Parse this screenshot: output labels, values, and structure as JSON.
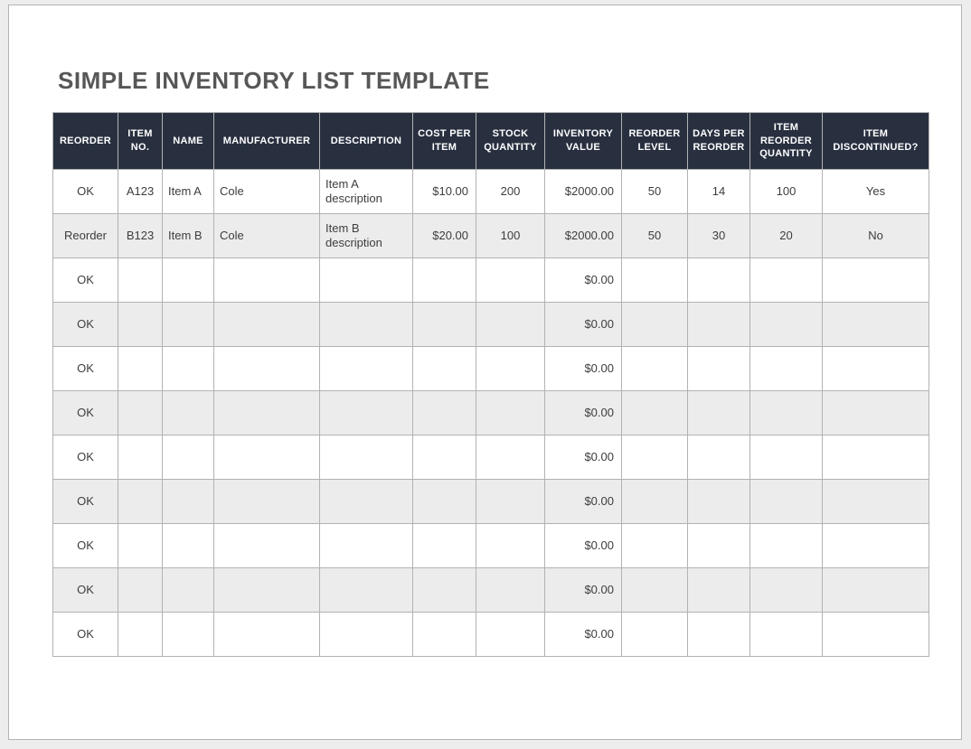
{
  "page": {
    "title": "SIMPLE INVENTORY LIST TEMPLATE"
  },
  "colors": {
    "canvas_bg": "#ededed",
    "page_bg": "#ffffff",
    "page_border": "#b3b3b3",
    "title_text": "#575757",
    "header_bg": "#283040",
    "header_text": "#ffffff",
    "body_text": "#3d3d3d",
    "row_alt_bg": "#ececec",
    "cell_border": "#b2b2b2"
  },
  "table": {
    "columns": [
      {
        "id": "reorder",
        "label": "REORDER"
      },
      {
        "id": "item_no",
        "label": "ITEM NO."
      },
      {
        "id": "name",
        "label": "NAME"
      },
      {
        "id": "manufacturer",
        "label": "MANUFACTURER"
      },
      {
        "id": "description",
        "label": "DESCRIPTION"
      },
      {
        "id": "cost_per_item",
        "label": "COST PER ITEM"
      },
      {
        "id": "stock_quantity",
        "label": "STOCK QUANTITY"
      },
      {
        "id": "inventory_value",
        "label": "INVENTORY VALUE"
      },
      {
        "id": "reorder_level",
        "label": "REORDER LEVEL"
      },
      {
        "id": "days_per_reorder",
        "label": "DAYS PER REORDER"
      },
      {
        "id": "item_reorder_quantity",
        "label": "ITEM REORDER QUANTITY"
      },
      {
        "id": "item_discontinued",
        "label": "ITEM DISCONTINUED?"
      }
    ],
    "rows": [
      {
        "cells": [
          "OK",
          "A123",
          "Item A",
          "Cole",
          "Item A description",
          "$10.00",
          "200",
          "$2000.00",
          "50",
          "14",
          "100",
          "Yes"
        ]
      },
      {
        "cells": [
          "Reorder",
          "B123",
          "Item B",
          "Cole",
          "Item B description",
          "$20.00",
          "100",
          "$2000.00",
          "50",
          "30",
          "20",
          "No"
        ]
      },
      {
        "cells": [
          "OK",
          "",
          "",
          "",
          "",
          "",
          "",
          "$0.00",
          "",
          "",
          "",
          ""
        ]
      },
      {
        "cells": [
          "OK",
          "",
          "",
          "",
          "",
          "",
          "",
          "$0.00",
          "",
          "",
          "",
          ""
        ]
      },
      {
        "cells": [
          "OK",
          "",
          "",
          "",
          "",
          "",
          "",
          "$0.00",
          "",
          "",
          "",
          ""
        ]
      },
      {
        "cells": [
          "OK",
          "",
          "",
          "",
          "",
          "",
          "",
          "$0.00",
          "",
          "",
          "",
          ""
        ]
      },
      {
        "cells": [
          "OK",
          "",
          "",
          "",
          "",
          "",
          "",
          "$0.00",
          "",
          "",
          "",
          ""
        ]
      },
      {
        "cells": [
          "OK",
          "",
          "",
          "",
          "",
          "",
          "",
          "$0.00",
          "",
          "",
          "",
          ""
        ]
      },
      {
        "cells": [
          "OK",
          "",
          "",
          "",
          "",
          "",
          "",
          "$0.00",
          "",
          "",
          "",
          ""
        ]
      },
      {
        "cells": [
          "OK",
          "",
          "",
          "",
          "",
          "",
          "",
          "$0.00",
          "",
          "",
          "",
          ""
        ]
      },
      {
        "cells": [
          "OK",
          "",
          "",
          "",
          "",
          "",
          "",
          "$0.00",
          "",
          "",
          "",
          ""
        ]
      }
    ]
  }
}
